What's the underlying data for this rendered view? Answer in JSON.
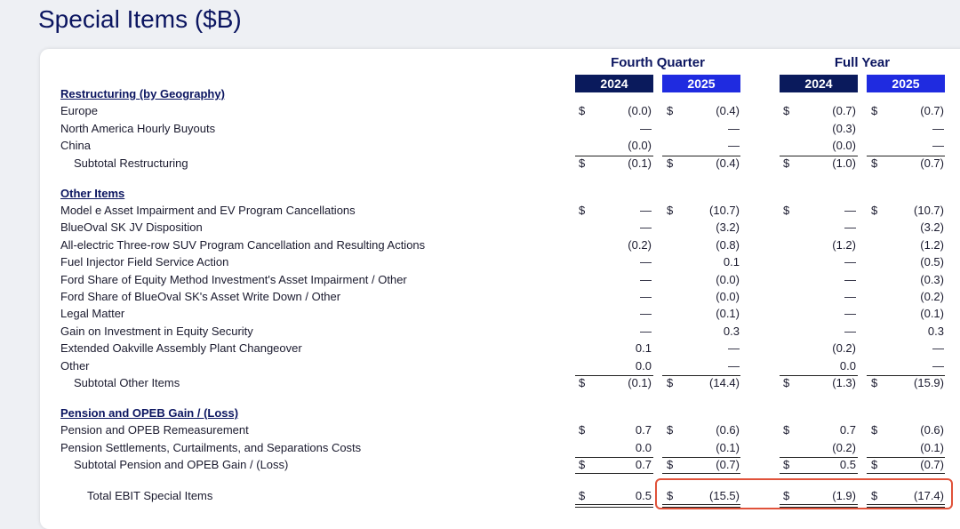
{
  "title": "Special Items ($B)",
  "table": {
    "column_groups": [
      "Fourth Quarter",
      "Full Year"
    ],
    "columns": [
      "2024",
      "2025",
      "2024",
      "2025"
    ],
    "sections": [
      {
        "title": "Restructuring (by Geography)",
        "rows": [
          {
            "label": "Europe",
            "currency": "$",
            "values": [
              "(0.0)",
              "(0.4)",
              "(0.7)",
              "(0.7)"
            ]
          },
          {
            "label": "North America Hourly Buyouts",
            "values": [
              "—",
              "—",
              "(0.3)",
              "—"
            ]
          },
          {
            "label": "China",
            "values": [
              "(0.0)",
              "—",
              "(0.0)",
              "—"
            ]
          }
        ],
        "subtotal": {
          "label": "Subtotal Restructuring",
          "currency": "$",
          "values": [
            "(0.1)",
            "(0.4)",
            "(1.0)",
            "(0.7)"
          ]
        }
      },
      {
        "title": "Other Items",
        "rows": [
          {
            "label": "Model e Asset Impairment and EV Program Cancellations",
            "currency": "$",
            "values": [
              "—",
              "(10.7)",
              "—",
              "(10.7)"
            ]
          },
          {
            "label": "BlueOval SK JV Disposition",
            "values": [
              "—",
              "(3.2)",
              "—",
              "(3.2)"
            ]
          },
          {
            "label": "All-electric Three-row SUV Program Cancellation and Resulting Actions",
            "values": [
              "(0.2)",
              "(0.8)",
              "(1.2)",
              "(1.2)"
            ]
          },
          {
            "label": "Fuel Injector Field Service Action",
            "values": [
              "—",
              "0.1",
              "—",
              "(0.5)"
            ]
          },
          {
            "label": "Ford Share of Equity Method Investment's Asset Impairment / Other",
            "values": [
              "—",
              "(0.0)",
              "—",
              "(0.3)"
            ]
          },
          {
            "label": "Ford Share of BlueOval SK's Asset Write Down / Other",
            "values": [
              "—",
              "(0.0)",
              "—",
              "(0.2)"
            ]
          },
          {
            "label": "Legal Matter",
            "values": [
              "—",
              "(0.1)",
              "—",
              "(0.1)"
            ]
          },
          {
            "label": "Gain on Investment in Equity Security",
            "values": [
              "—",
              "0.3",
              "—",
              "0.3"
            ]
          },
          {
            "label": "Extended Oakville Assembly Plant Changeover",
            "values": [
              "0.1",
              "—",
              "(0.2)",
              "—"
            ]
          },
          {
            "label": "Other",
            "values": [
              "0.0",
              "—",
              "0.0",
              "—"
            ]
          }
        ],
        "subtotal": {
          "label": "Subtotal Other Items",
          "currency": "$",
          "values": [
            "(0.1)",
            "(14.4)",
            "(1.3)",
            "(15.9)"
          ]
        }
      },
      {
        "title": "Pension and OPEB Gain / (Loss)",
        "rows": [
          {
            "label": "Pension and OPEB Remeasurement",
            "currency": "$",
            "values": [
              "0.7",
              "(0.6)",
              "0.7",
              "(0.6)"
            ]
          },
          {
            "label": "Pension Settlements, Curtailments, and Separations Costs",
            "values": [
              "0.0",
              "(0.1)",
              "(0.2)",
              "(0.1)"
            ]
          }
        ],
        "subtotal": {
          "label": "Subtotal Pension and OPEB Gain / (Loss)",
          "currency": "$",
          "values": [
            "0.7",
            "(0.7)",
            "0.5",
            "(0.7)"
          ]
        }
      }
    ],
    "total": {
      "label": "Total EBIT Special Items",
      "currency": "$",
      "values": [
        "0.5",
        "(15.5)",
        "(1.9)",
        "(17.4)"
      ]
    }
  }
}
